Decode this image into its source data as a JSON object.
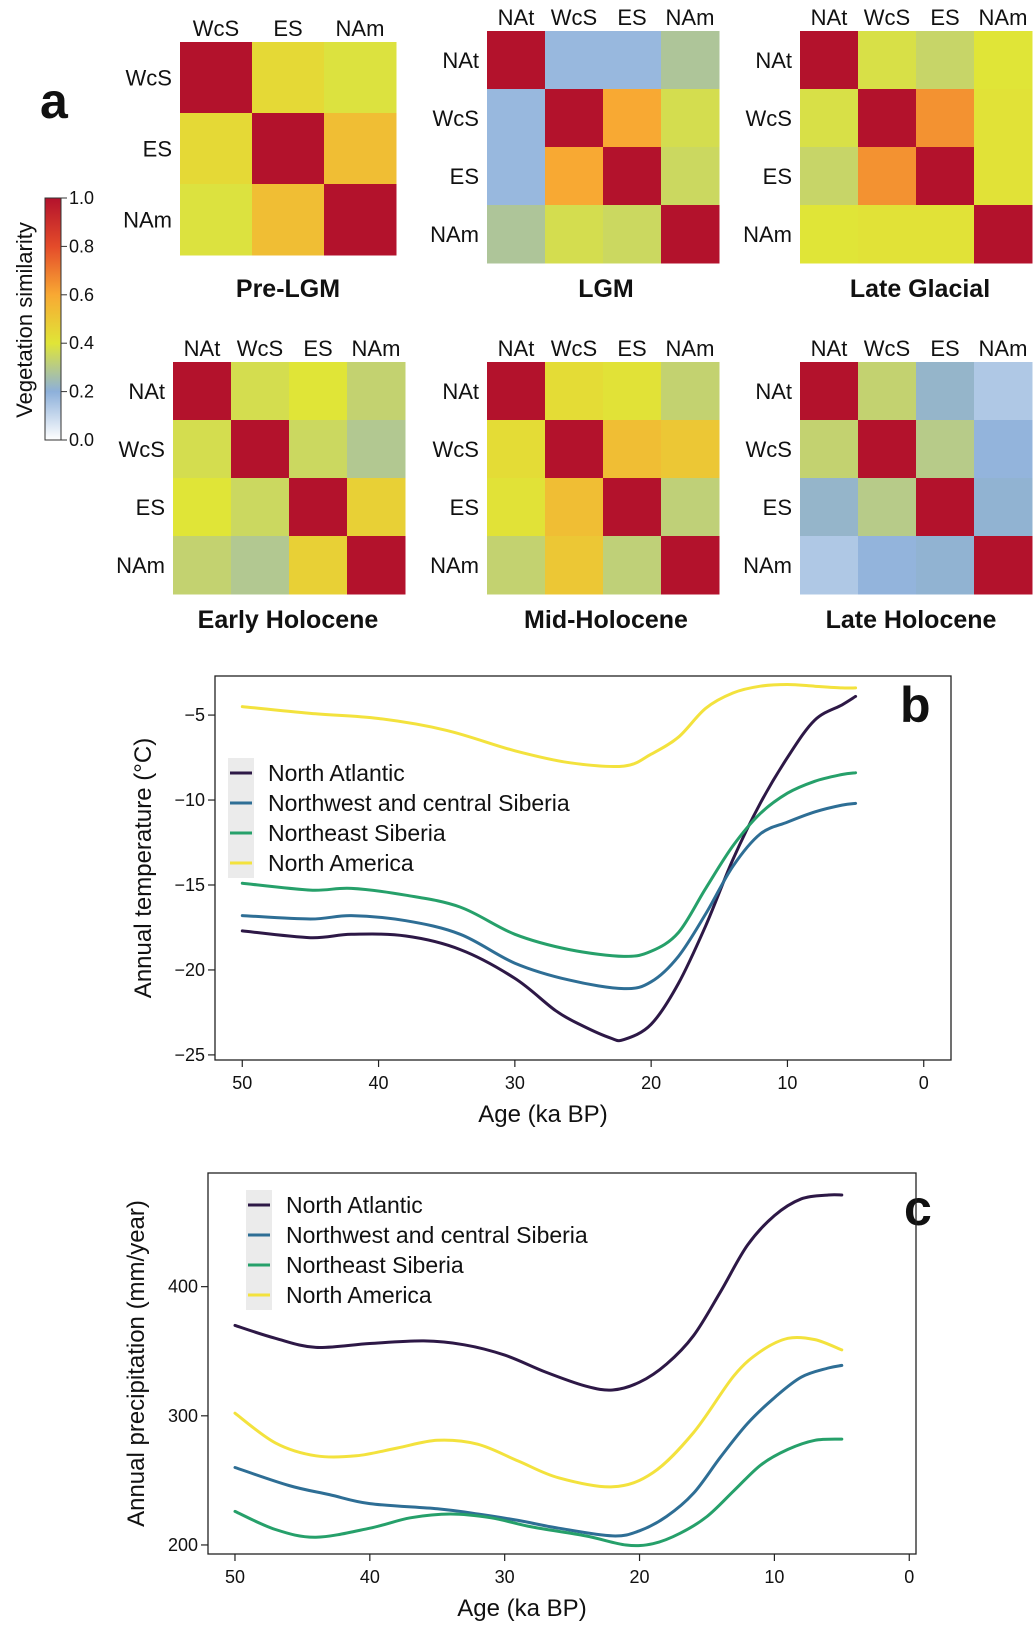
{
  "panel_labels": {
    "a": "a",
    "b": "b",
    "c": "c"
  },
  "colorbar": {
    "label": "Vegetation similarity",
    "ticks": [
      "1.0",
      "0.8",
      "0.6",
      "0.4",
      "0.2",
      "0.0"
    ]
  },
  "chart_data": [
    {
      "type": "heatmap",
      "title": "Pre-LGM",
      "categories": [
        "WcS",
        "ES",
        "NAm"
      ],
      "values": [
        [
          1.0,
          0.44,
          0.39
        ],
        [
          0.44,
          1.0,
          0.53
        ],
        [
          0.39,
          0.53,
          1.0
        ]
      ],
      "zlim": [
        0,
        1
      ]
    },
    {
      "type": "heatmap",
      "title": "LGM",
      "categories": [
        "NAt",
        "WcS",
        "ES",
        "NAm"
      ],
      "values": [
        [
          1.0,
          0.18,
          0.18,
          0.28
        ],
        [
          0.18,
          1.0,
          0.6,
          0.37
        ],
        [
          0.18,
          0.6,
          1.0,
          0.35
        ],
        [
          0.28,
          0.37,
          0.35,
          1.0
        ]
      ],
      "zlim": [
        0,
        1
      ]
    },
    {
      "type": "heatmap",
      "title": "Late Glacial",
      "categories": [
        "NAt",
        "WcS",
        "ES",
        "NAm"
      ],
      "values": [
        [
          1.0,
          0.38,
          0.34,
          0.4
        ],
        [
          0.38,
          1.0,
          0.65,
          0.41
        ],
        [
          0.34,
          0.65,
          1.0,
          0.41
        ],
        [
          0.4,
          0.41,
          0.41,
          1.0
        ]
      ],
      "zlim": [
        0,
        1
      ]
    },
    {
      "type": "heatmap",
      "title": "Early Holocene",
      "categories": [
        "NAt",
        "WcS",
        "ES",
        "NAm"
      ],
      "values": [
        [
          1.0,
          0.37,
          0.4,
          0.33
        ],
        [
          0.37,
          1.0,
          0.35,
          0.29
        ],
        [
          0.4,
          0.35,
          1.0,
          0.47
        ],
        [
          0.33,
          0.29,
          0.47,
          1.0
        ]
      ],
      "zlim": [
        0,
        1
      ]
    },
    {
      "type": "heatmap",
      "title": "Mid-Holocene",
      "categories": [
        "NAt",
        "WcS",
        "ES",
        "NAm"
      ],
      "values": [
        [
          1.0,
          0.43,
          0.41,
          0.33
        ],
        [
          0.43,
          1.0,
          0.53,
          0.5
        ],
        [
          0.41,
          0.53,
          1.0,
          0.32
        ],
        [
          0.33,
          0.5,
          0.32,
          1.0
        ]
      ],
      "zlim": [
        0,
        1
      ]
    },
    {
      "type": "heatmap",
      "title": "Late Holocene",
      "categories": [
        "NAt",
        "WcS",
        "ES",
        "NAm"
      ],
      "values": [
        [
          1.0,
          0.33,
          0.22,
          0.14
        ],
        [
          0.33,
          1.0,
          0.3,
          0.19
        ],
        [
          0.22,
          0.3,
          1.0,
          0.21
        ],
        [
          0.14,
          0.19,
          0.21,
          1.0
        ]
      ],
      "zlim": [
        0,
        1
      ]
    },
    {
      "type": "line",
      "title": "",
      "xlabel": "Age (ka BP)",
      "ylabel": "Annual temperature (°C)",
      "xlim": [
        52,
        -2
      ],
      "ylim": [
        -25.3,
        -2.7
      ],
      "xticks": [
        50,
        40,
        30,
        20,
        10,
        0
      ],
      "yticks": [
        -25,
        -20,
        -15,
        -10,
        -5
      ],
      "legend_position": "top-left",
      "series": [
        {
          "name": "North Atlantic",
          "color": "#2d1846",
          "x": [
            50,
            45,
            42,
            38,
            34,
            30,
            27,
            25,
            23,
            22,
            20,
            18,
            16,
            14,
            12,
            10,
            8,
            6,
            5
          ],
          "y": [
            -17.7,
            -18.1,
            -17.9,
            -18.0,
            -18.8,
            -20.5,
            -22.4,
            -23.3,
            -24.0,
            -24.1,
            -23.2,
            -20.8,
            -17.4,
            -13.5,
            -10.2,
            -7.5,
            -5.3,
            -4.4,
            -3.9
          ]
        },
        {
          "name": "Northwest and central Siberia",
          "color": "#2e6e95",
          "x": [
            50,
            45,
            42,
            38,
            34,
            30,
            26,
            22,
            20,
            18,
            16,
            14,
            12,
            10,
            8,
            6,
            5
          ],
          "y": [
            -16.8,
            -17.0,
            -16.8,
            -17.1,
            -17.9,
            -19.6,
            -20.6,
            -21.1,
            -20.7,
            -19.2,
            -16.7,
            -13.9,
            -12.0,
            -11.3,
            -10.7,
            -10.3,
            -10.2
          ]
        },
        {
          "name": "Northeast Siberia",
          "color": "#26a06a",
          "x": [
            50,
            45,
            42,
            38,
            34,
            30,
            26,
            22,
            20,
            18,
            16,
            14,
            12,
            10,
            8,
            6,
            5
          ],
          "y": [
            -14.9,
            -15.3,
            -15.2,
            -15.6,
            -16.3,
            -17.9,
            -18.8,
            -19.2,
            -18.9,
            -17.8,
            -15.2,
            -12.7,
            -10.8,
            -9.6,
            -8.9,
            -8.5,
            -8.4
          ]
        },
        {
          "name": "North America",
          "color": "#f3e23d",
          "x": [
            50,
            45,
            40,
            35,
            30,
            26,
            22,
            20,
            18,
            16,
            14,
            12,
            10,
            8,
            6,
            5
          ],
          "y": [
            -4.5,
            -4.9,
            -5.2,
            -5.9,
            -7.1,
            -7.8,
            -8.0,
            -7.3,
            -6.3,
            -4.6,
            -3.7,
            -3.3,
            -3.2,
            -3.3,
            -3.4,
            -3.4
          ]
        }
      ]
    },
    {
      "type": "line",
      "title": "",
      "xlabel": "Age (ka BP)",
      "ylabel": "Annual precipitation (mm/year)",
      "xlim": [
        52,
        -0.5
      ],
      "ylim": [
        193,
        488
      ],
      "xticks": [
        50,
        40,
        30,
        20,
        10,
        0
      ],
      "yticks": [
        200,
        300,
        400
      ],
      "legend_position": "top-left",
      "series": [
        {
          "name": "North Atlantic",
          "color": "#2d1846",
          "x": [
            50,
            47,
            44,
            40,
            36,
            33,
            30,
            27,
            24,
            22,
            20,
            18,
            16,
            14,
            12,
            10,
            8,
            6,
            5
          ],
          "y": [
            370,
            360,
            353,
            356,
            358,
            355,
            347,
            334,
            323,
            320,
            326,
            340,
            362,
            396,
            432,
            455,
            468,
            471,
            471
          ]
        },
        {
          "name": "Northwest and central Siberia",
          "color": "#2e6e95",
          "x": [
            50,
            46,
            43,
            40,
            35,
            32,
            29,
            26,
            22,
            20,
            18,
            16,
            14,
            12,
            10,
            8,
            6,
            5
          ],
          "y": [
            260,
            246,
            239,
            232,
            228,
            224,
            219,
            213,
            207,
            211,
            222,
            240,
            268,
            294,
            314,
            330,
            337,
            339
          ]
        },
        {
          "name": "Northeast Siberia",
          "color": "#26a06a",
          "x": [
            50,
            47,
            44,
            40,
            37,
            34,
            31,
            28,
            24,
            21,
            19,
            17,
            15,
            13,
            11,
            9,
            7,
            5
          ],
          "y": [
            226,
            212,
            206,
            213,
            221,
            224,
            221,
            214,
            207,
            200,
            201,
            209,
            222,
            242,
            262,
            274,
            281,
            282
          ]
        },
        {
          "name": "North America",
          "color": "#f3e23d",
          "x": [
            50,
            47,
            44,
            41,
            38,
            35,
            32,
            29,
            26,
            22,
            19,
            16,
            13,
            11,
            9,
            7,
            5
          ],
          "y": [
            302,
            279,
            269,
            269,
            275,
            281,
            278,
            265,
            252,
            245,
            256,
            287,
            331,
            350,
            360,
            359,
            351
          ]
        }
      ]
    }
  ]
}
